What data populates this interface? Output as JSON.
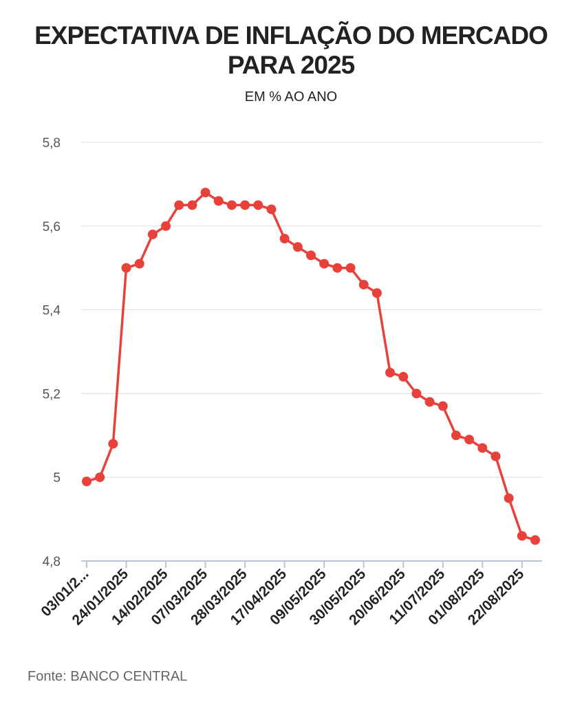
{
  "header": {
    "title_line1": "EXPECTATIVA DE INFLAÇÃO DO MERCADO",
    "title_line2": "PARA 2025",
    "subtitle": "EM % AO ANO"
  },
  "footer": {
    "source": "Fonte: BANCO CENTRAL"
  },
  "colors": {
    "line": "#e8413b",
    "grid": "#dddddd",
    "axis": "#b8c4dc",
    "title": "#222222"
  },
  "chart_data": {
    "type": "line",
    "title": "EXPECTATIVA DE INFLAÇÃO DO MERCADO PARA 2025",
    "subtitle": "EM % AO ANO",
    "xlabel": "",
    "ylabel": "",
    "ylim": [
      4.8,
      5.8
    ],
    "yticks": [
      "4,8",
      "5",
      "5,2",
      "5,4",
      "5,6",
      "5,8"
    ],
    "xtick_labels": [
      "03/01/2...",
      "24/01/2025",
      "14/02/2025",
      "07/03/2025",
      "28/03/2025",
      "17/04/2025",
      "09/05/2025",
      "30/05/2025",
      "20/06/2025",
      "11/07/2025",
      "01/08/2025",
      "22/08/2025"
    ],
    "grid": true,
    "legend": "none",
    "series": [
      {
        "x": [
          "03/01/2025",
          "10/01/2025",
          "17/01/2025",
          "24/01/2025",
          "31/01/2025",
          "07/02/2025",
          "14/02/2025",
          "21/02/2025",
          "28/02/2025",
          "07/03/2025",
          "14/03/2025",
          "21/03/2025",
          "28/03/2025",
          "04/04/2025",
          "11/04/2025",
          "17/04/2025",
          "25/04/2025",
          "02/05/2025",
          "09/05/2025",
          "16/05/2025",
          "23/05/2025",
          "30/05/2025",
          "06/06/2025",
          "13/06/2025",
          "20/06/2025",
          "27/06/2025",
          "04/07/2025",
          "11/07/2025",
          "18/07/2025",
          "25/07/2025",
          "01/08/2025",
          "08/08/2025",
          "15/08/2025",
          "22/08/2025",
          "29/08/2025"
        ],
        "values": [
          4.99,
          5.0,
          5.08,
          5.5,
          5.51,
          5.58,
          5.6,
          5.65,
          5.65,
          5.68,
          5.66,
          5.65,
          5.65,
          5.65,
          5.64,
          5.57,
          5.55,
          5.53,
          5.51,
          5.5,
          5.5,
          5.46,
          5.44,
          5.25,
          5.24,
          5.2,
          5.18,
          5.17,
          5.1,
          5.09,
          5.07,
          5.05,
          4.95,
          4.86,
          4.85
        ]
      }
    ]
  }
}
